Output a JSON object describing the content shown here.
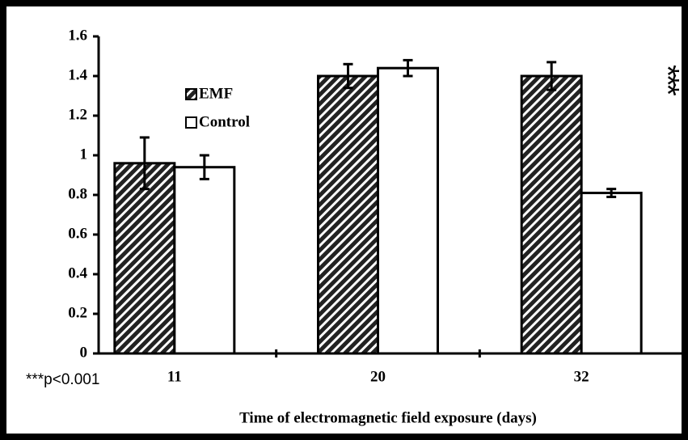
{
  "chart_data": {
    "type": "bar",
    "x_label": "Time of electromagnetic field exposure (days)",
    "annotation": "***",
    "footnote": "***p<0.001",
    "categories": [
      "11",
      "20",
      "32"
    ],
    "series": [
      {
        "name": "EMF",
        "color": "#222222",
        "hatch": true,
        "values": [
          0.96,
          1.4,
          1.4
        ],
        "errors": [
          0.13,
          0.06,
          0.07
        ]
      },
      {
        "name": "Control",
        "color": "#ffffff",
        "hatch": false,
        "values": [
          0.94,
          1.44,
          0.81
        ],
        "errors": [
          0.06,
          0.04,
          0.02
        ]
      }
    ],
    "ylim": [
      0,
      1.6
    ],
    "yticks": [
      0,
      0.2,
      0.4,
      0.6,
      0.8,
      1,
      1.2,
      1.4,
      1.6
    ],
    "grid": false
  }
}
